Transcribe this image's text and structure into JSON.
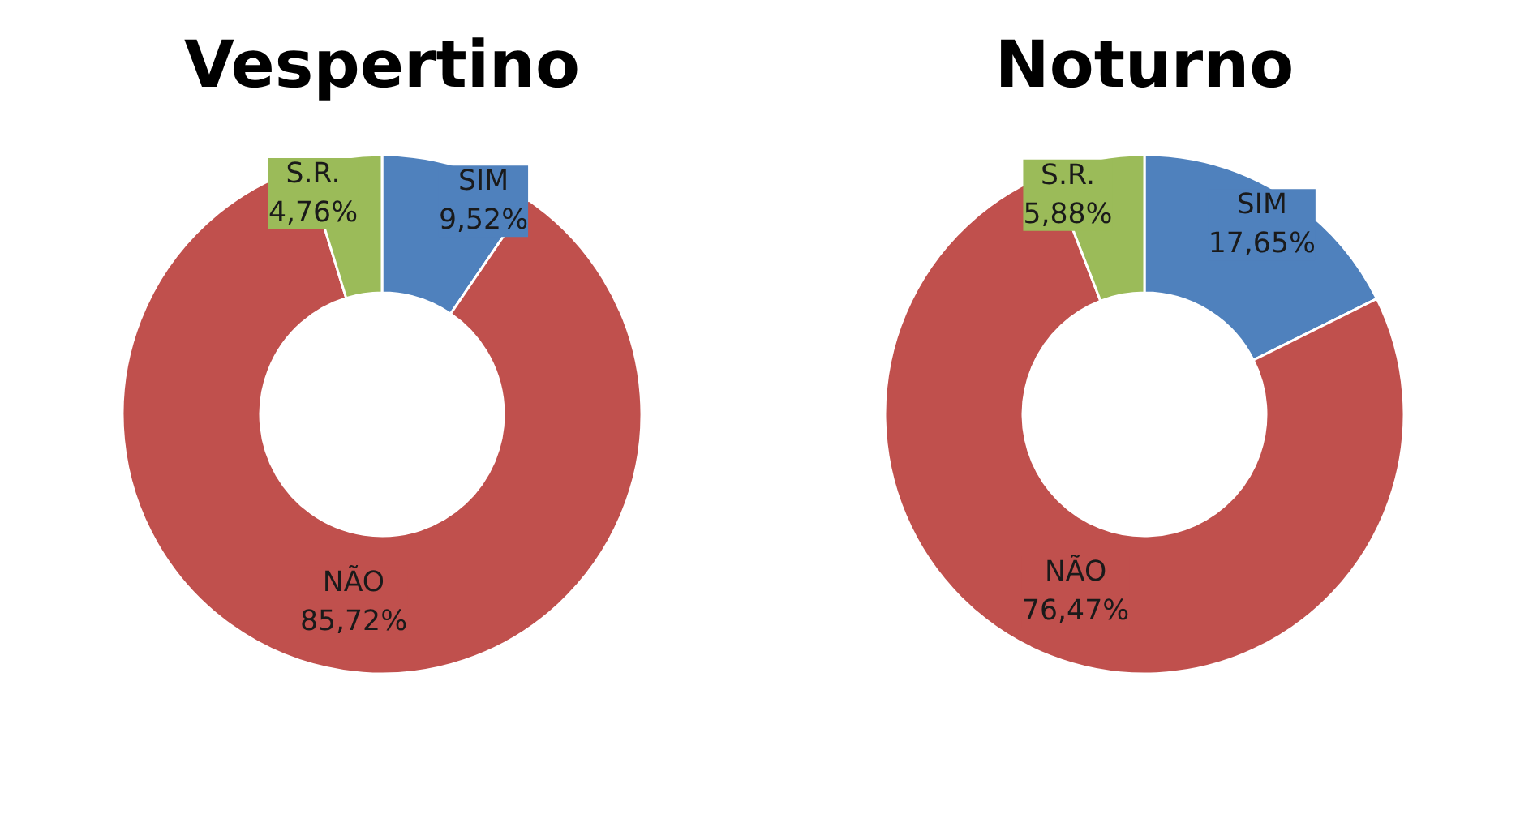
{
  "chart_data": [
    {
      "type": "donut",
      "title": "Vespertino",
      "categories": [
        "SIM",
        "NÃO",
        "S.R."
      ],
      "values": [
        9.52,
        85.72,
        4.76
      ],
      "colors": [
        "#4f81bd",
        "#c0504d",
        "#9bbb59"
      ],
      "value_labels": [
        "9,52%",
        "85,72%",
        "4,76%"
      ]
    },
    {
      "type": "donut",
      "title": "Noturno",
      "categories": [
        "SIM",
        "NÃO",
        "S.R."
      ],
      "values": [
        17.65,
        76.47,
        5.88
      ],
      "colors": [
        "#4f81bd",
        "#c0504d",
        "#9bbb59"
      ],
      "value_labels": [
        "17,65%",
        "76,47%",
        "5,88%"
      ]
    }
  ]
}
